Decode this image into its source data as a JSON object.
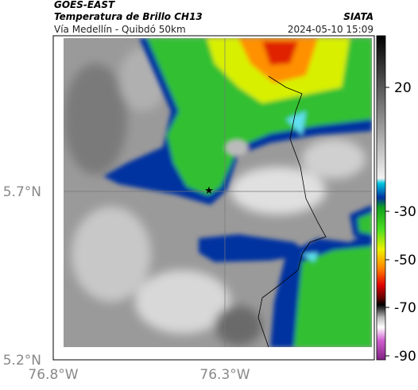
{
  "header": {
    "title": "GOES-EAST",
    "subtitle": "Temperatura de Brillo CH13",
    "source": "SIATA",
    "route": "Vía Medellín - Quibdó 50km",
    "timestamp": "2024-05-10 15:09"
  },
  "map": {
    "lat_labels": [
      "5.7°N",
      "5.2°N"
    ],
    "lon_labels": [
      "76.8°W",
      "76.3°W"
    ]
  },
  "colorbar": {
    "ticks": [
      20,
      -30,
      -50,
      -70,
      -90
    ]
  }
}
